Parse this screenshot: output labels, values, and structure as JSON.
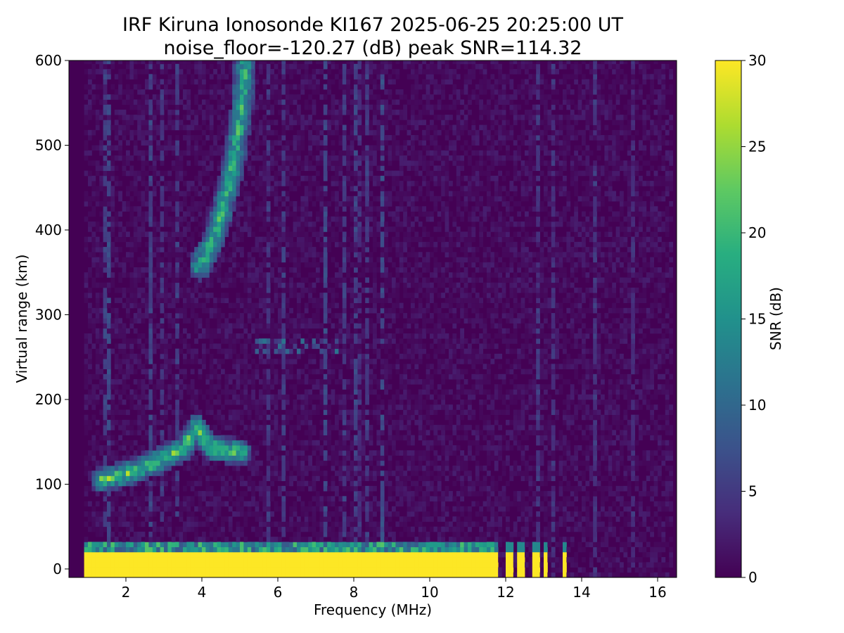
{
  "chart_data": {
    "type": "heatmap",
    "title": "IRF Kiruna Ionosonde KI167 2025-06-25 20:25:00  UT",
    "subtitle": "noise_floor=-120.27 (dB) peak SNR=114.32",
    "xlabel": "Frequency (MHz)",
    "ylabel": "Virtual range (km)",
    "colorbar_label": "SNR (dB)",
    "colormap": "viridis",
    "xlim": [
      0.5,
      16.5
    ],
    "ylim": [
      -10,
      600
    ],
    "clim": [
      0,
      30
    ],
    "x_ticks": [
      2,
      4,
      6,
      8,
      10,
      12,
      14,
      16
    ],
    "y_ticks": [
      0,
      100,
      200,
      300,
      400,
      500,
      600
    ],
    "colorbar_ticks": [
      0,
      5,
      10,
      15,
      20,
      25,
      30
    ],
    "data_extent": {
      "freq_mhz": [
        0.9,
        16.3
      ],
      "range_km": [
        -10,
        600
      ]
    },
    "features": [
      {
        "name": "ground clutter",
        "freq_mhz": [
          0.9,
          11.7
        ],
        "range_km": [
          -10,
          30
        ],
        "snr_db": 30
      },
      {
        "name": "E-layer echo",
        "points": [
          [
            1.3,
            102
          ],
          [
            2.0,
            110
          ],
          [
            2.8,
            125
          ],
          [
            3.5,
            140
          ],
          [
            3.8,
            165
          ],
          [
            4.2,
            140
          ],
          [
            5.0,
            135
          ]
        ],
        "snr_db": 25
      },
      {
        "name": "F-layer echo",
        "points": [
          [
            3.9,
            355
          ],
          [
            4.2,
            380
          ],
          [
            4.5,
            420
          ],
          [
            4.8,
            480
          ],
          [
            5.0,
            540
          ],
          [
            5.1,
            600
          ]
        ],
        "snr_db": 22
      },
      {
        "name": "multi-hop echo",
        "freq_mhz": [
          5.3,
          7.5
        ],
        "range_km": [
          250,
          270
        ],
        "snr_db": 8
      }
    ]
  }
}
